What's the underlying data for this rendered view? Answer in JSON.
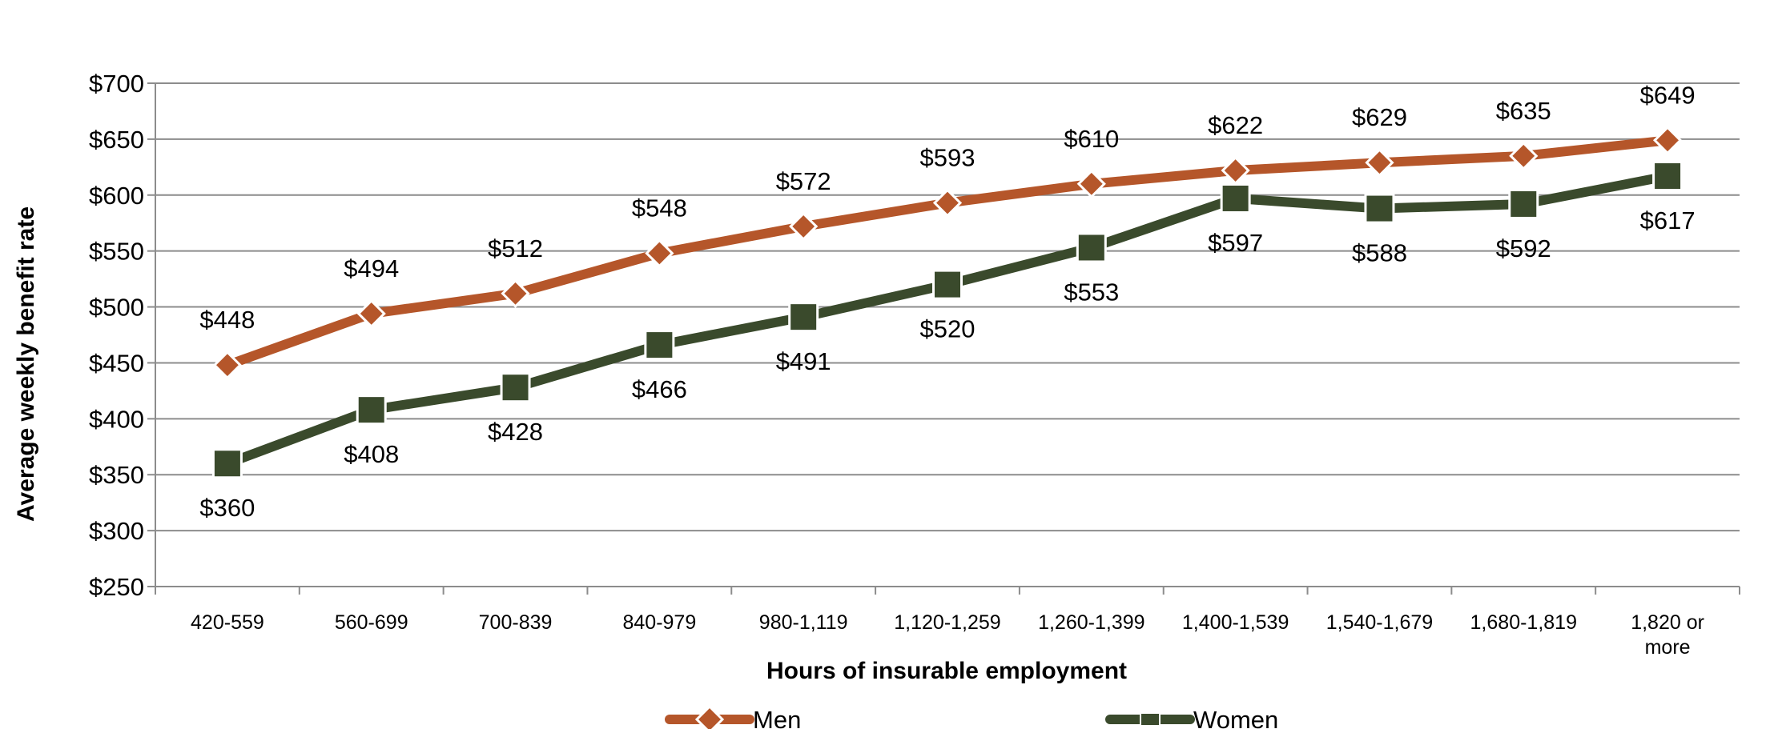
{
  "chart_data": {
    "type": "line",
    "xlabel": "Hours of insurable employment",
    "ylabel": "Average weekly benefit rate",
    "categories": [
      [
        "420-559"
      ],
      [
        "560-699"
      ],
      [
        "700-839"
      ],
      [
        "840-979"
      ],
      [
        "980-1,119"
      ],
      [
        "1,120-1,259"
      ],
      [
        "1,260-1,399"
      ],
      [
        "1,400-1,539"
      ],
      [
        "1,540-1,679"
      ],
      [
        "1,680-1,819"
      ],
      [
        "1,820 or",
        "more"
      ]
    ],
    "ylim": [
      250,
      700
    ],
    "yticks": [
      250,
      300,
      350,
      400,
      450,
      500,
      550,
      600,
      650,
      700
    ],
    "ytick_labels": [
      "$250",
      "$300",
      "$350",
      "$400",
      "$450",
      "$500",
      "$550",
      "$600",
      "$650",
      "$700"
    ],
    "grid": true,
    "legend_position": "bottom",
    "series": [
      {
        "name": "Men",
        "color": "#b5562a",
        "marker": "diamond",
        "label_position": "above",
        "values": [
          448,
          494,
          512,
          548,
          572,
          593,
          610,
          622,
          629,
          635,
          649
        ],
        "labels": [
          "$448",
          "$494",
          "$512",
          "$548",
          "$572",
          "$593",
          "$610",
          "$622",
          "$629",
          "$635",
          "$649"
        ]
      },
      {
        "name": "Women",
        "color": "#3a4a2c",
        "marker": "square",
        "label_position": "below",
        "values": [
          360,
          408,
          428,
          466,
          491,
          520,
          553,
          597,
          588,
          592,
          617
        ],
        "labels": [
          "$360",
          "$408",
          "$428",
          "$466",
          "$491",
          "$520",
          "$553",
          "$597",
          "$588",
          "$592",
          "$617"
        ]
      }
    ]
  }
}
